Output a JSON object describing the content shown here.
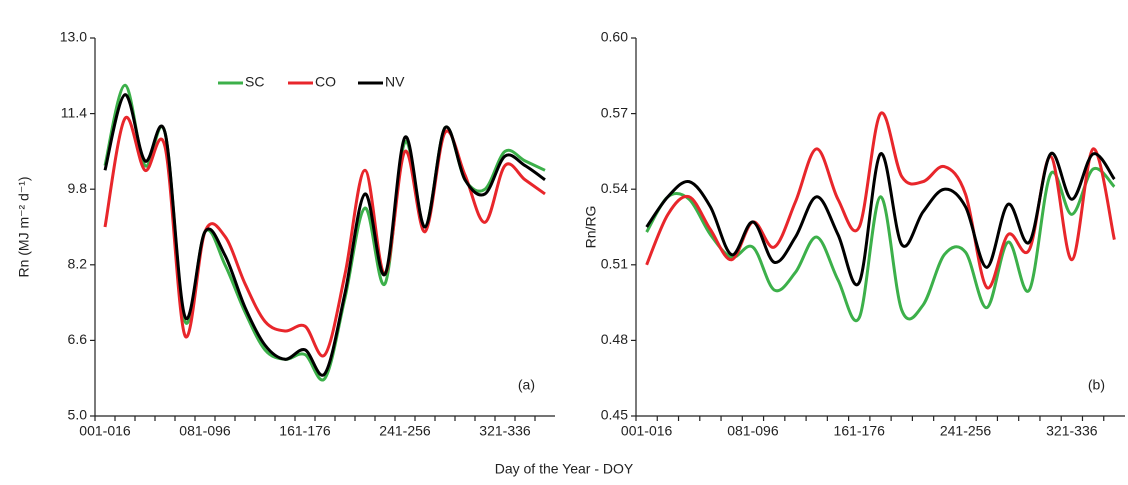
{
  "x_label": "Day of the Year - DOY",
  "chart_data": [
    {
      "type": "line",
      "y_label": "Rn (MJ m⁻² d⁻¹)",
      "annotation": "(a)",
      "legend": "top",
      "categories": [
        "001-016",
        null,
        null,
        null,
        null,
        "081-096",
        null,
        null,
        null,
        null,
        "161-176",
        null,
        null,
        null,
        null,
        "241-256",
        null,
        null,
        null,
        null,
        "321-336",
        null,
        null
      ],
      "ylim": [
        5,
        13
      ],
      "yticks": [
        {
          "value": 5,
          "label": "5.0"
        },
        6.6,
        8.2,
        9.8,
        11.4,
        {
          "value": 13,
          "label": "13.0"
        }
      ],
      "series": [
        {
          "name": "SC",
          "color": "#3cb04a",
          "values": [
            10.3,
            12.0,
            10.3,
            11.0,
            7.0,
            8.9,
            8.2,
            7.2,
            6.4,
            6.2,
            6.3,
            5.8,
            7.5,
            9.4,
            7.8,
            10.8,
            9.0,
            11.1,
            10.0,
            9.8,
            10.6,
            10.4,
            10.2
          ]
        },
        {
          "name": "CO",
          "color": "#e8262b",
          "values": [
            9.0,
            11.3,
            10.2,
            10.7,
            6.7,
            8.9,
            8.8,
            7.8,
            7.0,
            6.8,
            6.9,
            6.3,
            8.0,
            10.2,
            8.0,
            10.6,
            8.9,
            11.0,
            10.1,
            9.1,
            10.3,
            10.0,
            9.7
          ]
        },
        {
          "name": "NV",
          "color": "#000000",
          "values": [
            10.2,
            11.8,
            10.4,
            11.0,
            7.1,
            8.9,
            8.4,
            7.3,
            6.5,
            6.2,
            6.4,
            5.9,
            7.6,
            9.7,
            8.0,
            10.9,
            9.0,
            11.1,
            10.0,
            9.7,
            10.5,
            10.3,
            10.0
          ]
        }
      ]
    },
    {
      "type": "line",
      "y_label": "Rn/RG",
      "annotation": "(b)",
      "categories": [
        "001-016",
        null,
        null,
        null,
        null,
        "081-096",
        null,
        null,
        null,
        null,
        "161-176",
        null,
        null,
        null,
        null,
        "241-256",
        null,
        null,
        null,
        null,
        "321-336",
        null,
        null
      ],
      "ylim": [
        0.45,
        0.6
      ],
      "yticks": [
        0.45,
        0.48,
        0.51,
        0.54,
        0.57,
        {
          "value": 0.6,
          "label": "0.60"
        }
      ],
      "series": [
        {
          "color": "#3cb04a",
          "values": [
            0.523,
            0.537,
            0.536,
            0.522,
            0.513,
            0.517,
            0.5,
            0.507,
            0.521,
            0.504,
            0.489,
            0.537,
            0.492,
            0.494,
            0.514,
            0.515,
            0.493,
            0.519,
            0.5,
            0.546,
            0.53,
            0.548,
            0.541
          ]
        },
        {
          "color": "#e8262b",
          "values": [
            0.51,
            0.53,
            0.537,
            0.524,
            0.512,
            0.527,
            0.517,
            0.535,
            0.556,
            0.536,
            0.525,
            0.57,
            0.545,
            0.543,
            0.549,
            0.538,
            0.501,
            0.522,
            0.516,
            0.553,
            0.512,
            0.556,
            0.52
          ]
        },
        {
          "color": "#000000",
          "values": [
            0.525,
            0.537,
            0.543,
            0.533,
            0.514,
            0.527,
            0.511,
            0.521,
            0.537,
            0.522,
            0.503,
            0.554,
            0.518,
            0.531,
            0.54,
            0.533,
            0.509,
            0.534,
            0.519,
            0.554,
            0.536,
            0.554,
            0.544
          ]
        }
      ]
    }
  ]
}
